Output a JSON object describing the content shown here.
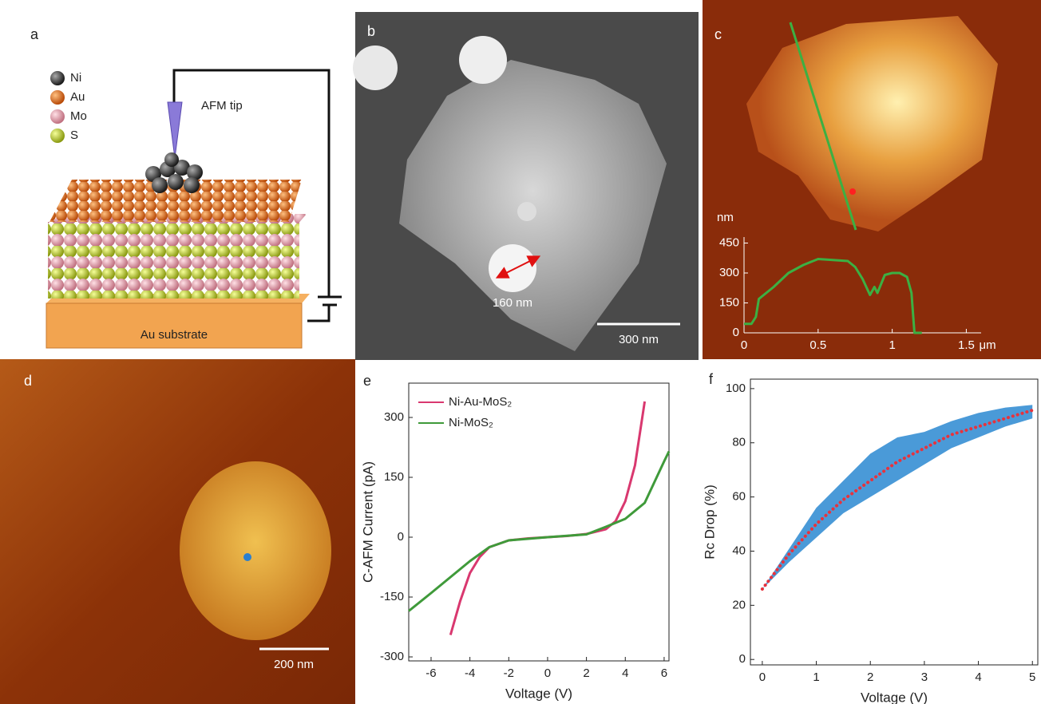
{
  "panels": {
    "a": {
      "label": "a",
      "legend": [
        "Ni",
        "Au",
        "Mo",
        "S"
      ],
      "tip": "AFM tip",
      "substrate": "Au substrate"
    },
    "b": {
      "label": "b",
      "particle": "160 nm",
      "scale": "300 nm"
    },
    "c": {
      "label": "c"
    },
    "d": {
      "label": "d",
      "scale": "200 nm"
    },
    "e": {
      "label": "e"
    },
    "f": {
      "label": "f"
    }
  },
  "chart_data": [
    {
      "type": "line",
      "y_unit": "nm",
      "x_unit": "μm",
      "xlim": [
        0,
        1.6
      ],
      "ylim": [
        0,
        480
      ],
      "xticks": [
        0,
        0.5,
        1,
        1.5
      ],
      "yticks": [
        0,
        150,
        300,
        450
      ],
      "series": [
        {
          "color": "#3cb043",
          "x": [
            0,
            0.05,
            0.08,
            0.1,
            0.2,
            0.3,
            0.4,
            0.5,
            0.6,
            0.7,
            0.75,
            0.8,
            0.85,
            0.88,
            0.9,
            0.95,
            1.0,
            1.05,
            1.1,
            1.13,
            1.15,
            1.2
          ],
          "values": [
            45,
            45,
            80,
            170,
            230,
            300,
            340,
            370,
            365,
            360,
            330,
            270,
            190,
            230,
            200,
            290,
            300,
            300,
            280,
            200,
            0,
            0
          ]
        }
      ]
    },
    {
      "type": "line",
      "x_label": "Voltage (V)",
      "y_label": "C-AFM Current (pA)",
      "xlim": [
        -7.15,
        6.25
      ],
      "ylim": [
        -310,
        386
      ],
      "xticks": [
        -6,
        -4,
        -2,
        0,
        2,
        4,
        6
      ],
      "yticks": [
        -300,
        -150,
        0,
        150,
        300
      ],
      "series": [
        {
          "name": "Ni-Au-MoS₂",
          "color": "#d9386f",
          "x": [
            -5,
            -4.5,
            -4,
            -3.5,
            -3,
            -2,
            -1,
            0,
            1,
            2,
            3,
            3.5,
            4,
            4.5,
            5
          ],
          "values": [
            -245,
            -160,
            -90,
            -50,
            -25,
            -8,
            -3,
            0,
            3,
            8,
            20,
            40,
            90,
            180,
            340
          ]
        },
        {
          "name": "Ni-MoS₂",
          "color": "#3f9a3a",
          "x": [
            -7.15,
            -6,
            -5,
            -4,
            -3,
            -2,
            0,
            2,
            3,
            4,
            5,
            6,
            6.25
          ],
          "values": [
            -185,
            -140,
            -100,
            -60,
            -25,
            -8,
            0,
            7,
            26,
            46,
            86,
            190,
            215
          ]
        }
      ]
    },
    {
      "type": "line",
      "x_label": "Voltage (V)",
      "y_label": "Rc Drop (%)",
      "xlim": [
        -0.22,
        5.1
      ],
      "ylim": [
        -2,
        103.5
      ],
      "xticks": [
        0,
        1,
        2,
        3,
        4,
        5
      ],
      "yticks": [
        0,
        20,
        40,
        60,
        80,
        100
      ],
      "band": {
        "color": "#4a9ad8",
        "x": [
          0,
          0.5,
          1,
          1.5,
          2,
          2.5,
          3,
          3.5,
          4,
          4.5,
          5
        ],
        "lower": [
          26,
          36,
          45,
          54,
          60,
          66,
          72,
          78,
          82,
          86,
          89
        ],
        "upper": [
          26,
          41,
          56,
          66,
          76,
          82,
          84,
          88,
          91,
          93,
          94
        ]
      },
      "series": [
        {
          "color": "#e8323c",
          "dotted": true,
          "x": [
            0,
            0.5,
            1,
            1.5,
            2,
            2.5,
            3,
            3.5,
            4,
            4.5,
            5
          ],
          "values": [
            26,
            39,
            50,
            59,
            66,
            73,
            78,
            83,
            86,
            89,
            92
          ]
        }
      ]
    }
  ]
}
